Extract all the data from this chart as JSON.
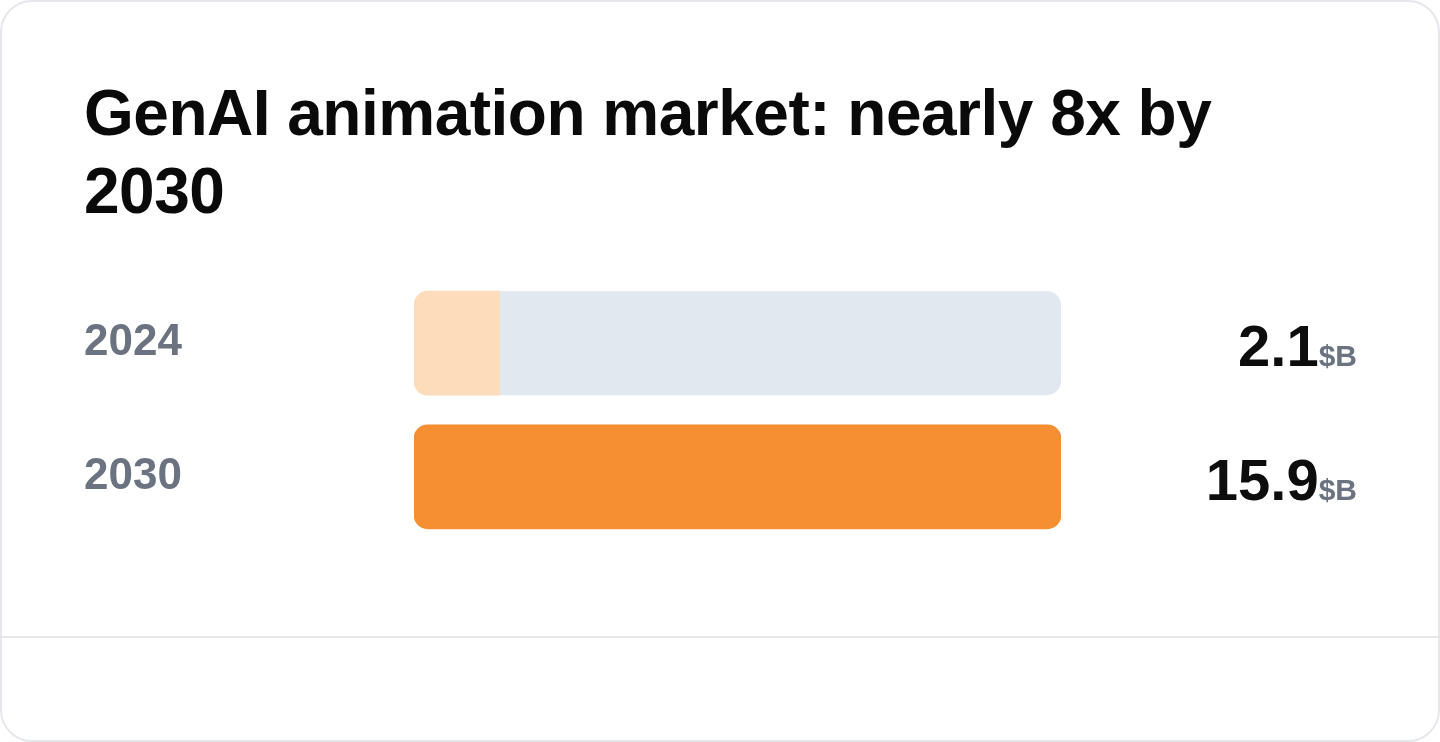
{
  "chart_data": {
    "type": "bar",
    "orientation": "horizontal",
    "title": "GenAI animation market: nearly 8x by 2030",
    "categories": [
      "2024",
      "2030"
    ],
    "values": [
      2.1,
      15.9
    ],
    "colors": [
      "#fcdcbb",
      "#f58f31"
    ],
    "xlim": [
      0,
      15.9
    ],
    "value_labels": [
      "2.1$B",
      "15.9$B"
    ],
    "tick_labels": "y"
  }
}
